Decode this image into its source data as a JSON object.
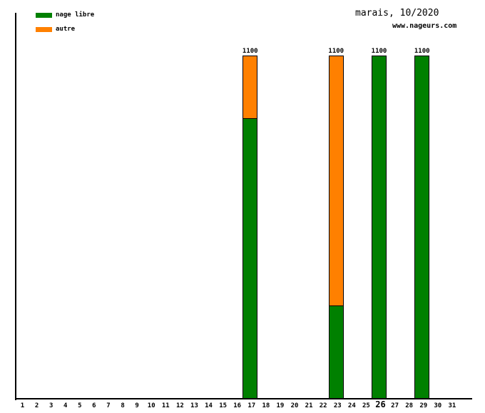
{
  "header": {
    "website": "www.nageurs.com"
  },
  "chart_data": {
    "type": "bar",
    "stacked": true,
    "title": "marais, 10/2020",
    "xlabel": "",
    "ylabel": "",
    "ylim": [
      0,
      1100
    ],
    "grid": false,
    "legend_position": "top-left",
    "axis_color": "#000000",
    "background_color": "#ffffff",
    "categories": [
      "1",
      "2",
      "3",
      "4",
      "5",
      "6",
      "7",
      "8",
      "9",
      "10",
      "11",
      "12",
      "13",
      "14",
      "15",
      "16",
      "17",
      "18",
      "19",
      "20",
      "21",
      "22",
      "23",
      "24",
      "25",
      "26",
      "27",
      "28",
      "29",
      "30",
      "31"
    ],
    "highlighted_category": "26",
    "series": [
      {
        "name": "nage libre",
        "color": "#008000",
        "values": [
          0,
          0,
          0,
          0,
          0,
          0,
          0,
          0,
          0,
          0,
          0,
          0,
          0,
          0,
          0,
          0,
          900,
          0,
          0,
          0,
          0,
          0,
          300,
          0,
          0,
          1100,
          0,
          0,
          1100,
          0,
          0
        ]
      },
      {
        "name": "autre",
        "color": "#ff8000",
        "values": [
          0,
          0,
          0,
          0,
          0,
          0,
          0,
          0,
          0,
          0,
          0,
          0,
          0,
          0,
          0,
          0,
          200,
          0,
          0,
          0,
          0,
          0,
          800,
          0,
          0,
          0,
          0,
          0,
          0,
          0,
          0
        ]
      }
    ],
    "bar_total_labels": [
      {
        "category": "17",
        "label": "1100"
      },
      {
        "category": "23",
        "label": "1100"
      },
      {
        "category": "26",
        "label": "1100"
      },
      {
        "category": "29",
        "label": "1100"
      }
    ]
  }
}
